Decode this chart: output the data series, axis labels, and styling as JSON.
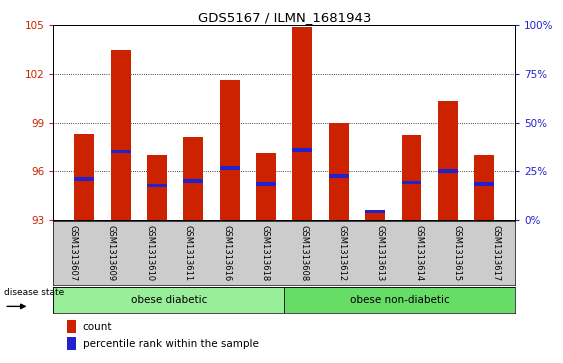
{
  "title": "GDS5167 / ILMN_1681943",
  "samples": [
    "GSM1313607",
    "GSM1313609",
    "GSM1313610",
    "GSM1313611",
    "GSM1313616",
    "GSM1313618",
    "GSM1313608",
    "GSM1313612",
    "GSM1313613",
    "GSM1313614",
    "GSM1313615",
    "GSM1313617"
  ],
  "bar_tops": [
    98.3,
    103.5,
    97.0,
    98.1,
    101.6,
    97.1,
    104.9,
    99.0,
    93.5,
    98.2,
    100.3,
    97.0
  ],
  "bar_base": 93,
  "blue_positions": [
    95.5,
    97.2,
    95.1,
    95.4,
    96.2,
    95.2,
    97.3,
    95.7,
    93.5,
    95.3,
    96.0,
    95.2
  ],
  "ylim_left": [
    93,
    105
  ],
  "yticks_left": [
    93,
    96,
    99,
    102,
    105
  ],
  "yticks_right_vals": [
    0,
    25,
    50,
    75,
    100
  ],
  "yticks_right_labels": [
    "0%",
    "25%",
    "50%",
    "75%",
    "100%"
  ],
  "bar_color": "#cc2200",
  "blue_color": "#2222cc",
  "group1_label": "obese diabetic",
  "group2_label": "obese non-diabetic",
  "group1_count": 6,
  "group2_count": 6,
  "disease_state_label": "disease state",
  "legend_count_label": "count",
  "legend_pct_label": "percentile rank within the sample",
  "tick_bg_color": "#cccccc",
  "group1_bg_color": "#99ee99",
  "group2_bg_color": "#66dd66",
  "right_axis_color": "#2222cc",
  "left_axis_color": "#cc2200"
}
